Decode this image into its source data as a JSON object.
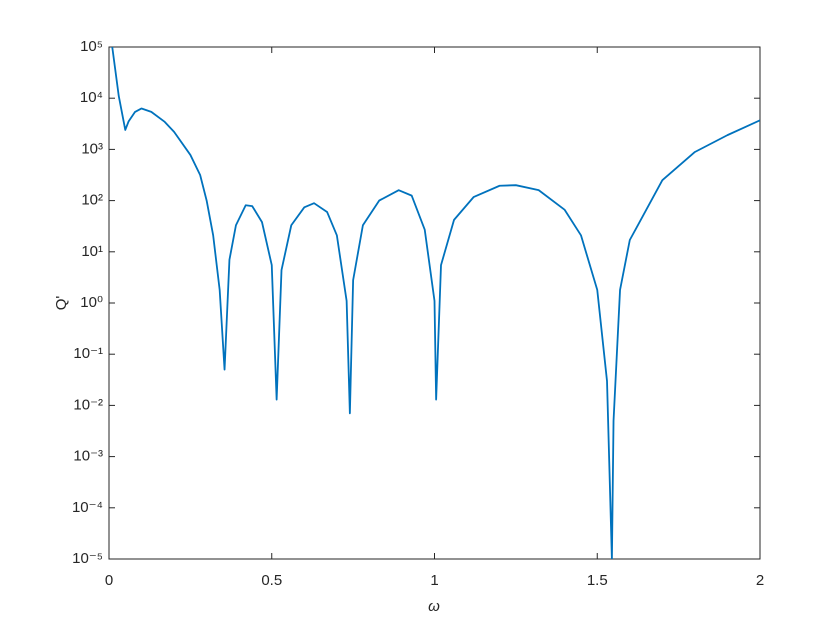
{
  "chart_data": {
    "type": "line",
    "xlabel": "ω",
    "ylabel": "Q'",
    "log_y": true,
    "xlim": [
      0,
      2
    ],
    "xticks": [
      0,
      0.5,
      1,
      1.5,
      2
    ],
    "ylim": [
      1e-05,
      100000
    ],
    "yticks": [
      {
        "value": 1e-05,
        "label": "10⁻⁵"
      },
      {
        "value": 0.0001,
        "label": "10⁻⁴"
      },
      {
        "value": 0.001,
        "label": "10⁻³"
      },
      {
        "value": 0.01,
        "label": "10⁻²"
      },
      {
        "value": 0.1,
        "label": "10⁻¹"
      },
      {
        "value": 1,
        "label": "10⁰"
      },
      {
        "value": 10,
        "label": "10¹"
      },
      {
        "value": 100,
        "label": "10²"
      },
      {
        "value": 1000,
        "label": "10³"
      },
      {
        "value": 10000,
        "label": "10⁴"
      },
      {
        "value": 100000,
        "label": "10⁵"
      }
    ],
    "series": [
      {
        "color": "#0072bd",
        "x": [
          0.01,
          0.03,
          0.05,
          0.06,
          0.08,
          0.1,
          0.13,
          0.17,
          0.2,
          0.25,
          0.28,
          0.3,
          0.32,
          0.34,
          0.355,
          0.37,
          0.39,
          0.42,
          0.44,
          0.47,
          0.5,
          0.515,
          0.53,
          0.56,
          0.6,
          0.63,
          0.67,
          0.7,
          0.73,
          0.74,
          0.75,
          0.78,
          0.83,
          0.89,
          0.93,
          0.97,
          1.0,
          1.005,
          1.02,
          1.06,
          1.12,
          1.2,
          1.25,
          1.32,
          1.4,
          1.45,
          1.5,
          1.53,
          1.545,
          1.55,
          1.57,
          1.6,
          1.7,
          1.8,
          1.9,
          2.0
        ],
        "values": [
          100000,
          11000,
          2400,
          3500,
          5400,
          6300,
          5400,
          3500,
          2200,
          780,
          316,
          100,
          21,
          1.8,
          0.05,
          7,
          33,
          81,
          78,
          38,
          5.5,
          0.013,
          4.4,
          33,
          74,
          89,
          60,
          21,
          1.1,
          0.007,
          2.8,
          33,
          100,
          160,
          125,
          27,
          1.1,
          0.013,
          5.5,
          42,
          117,
          195,
          200,
          160,
          66,
          21,
          1.8,
          0.03,
          1e-05,
          0.005,
          1.8,
          17,
          250,
          890,
          1900,
          3700
        ]
      }
    ]
  }
}
